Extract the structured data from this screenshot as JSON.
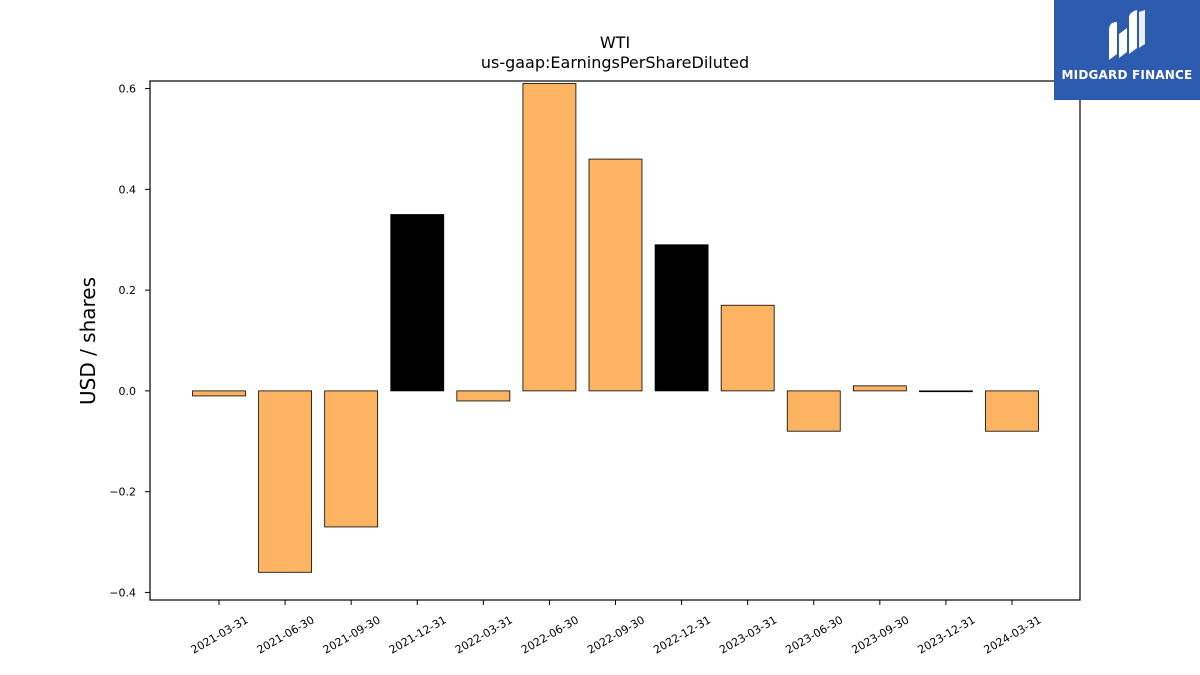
{
  "chart_data": {
    "type": "bar",
    "title": "WTI",
    "subtitle": "us-gaap:EarningsPerShareDiluted",
    "xlabel": "",
    "ylabel": "USD / shares",
    "ylim": [
      -0.415,
      0.615
    ],
    "yticks": [
      -0.4,
      -0.2,
      0.0,
      0.2,
      0.4,
      0.6
    ],
    "ytick_labels": [
      "−0.4",
      "−0.2",
      "0.0",
      "0.2",
      "0.4",
      "0.6"
    ],
    "grid": false,
    "categories": [
      "2021-03-31",
      "2021-06-30",
      "2021-09-30",
      "2021-12-31",
      "2022-03-31",
      "2022-06-30",
      "2022-09-30",
      "2022-12-31",
      "2023-03-31",
      "2023-06-30",
      "2023-09-30",
      "2023-12-31",
      "2024-03-31"
    ],
    "values": [
      -0.01,
      -0.36,
      -0.27,
      0.35,
      -0.02,
      0.61,
      0.46,
      0.29,
      0.17,
      -0.08,
      0.01,
      0.0,
      -0.08
    ],
    "bar_colors": [
      "#fdb462",
      "#fdb462",
      "#fdb462",
      "#000000",
      "#fdb462",
      "#fdb462",
      "#fdb462",
      "#000000",
      "#fdb462",
      "#fdb462",
      "#fdb462",
      "#fdb462",
      "#fdb462"
    ]
  },
  "logo": {
    "text": "MIDGARD FINANCE",
    "icon": "midgard-logo-icon",
    "bg_color": "#2d5bb0"
  }
}
